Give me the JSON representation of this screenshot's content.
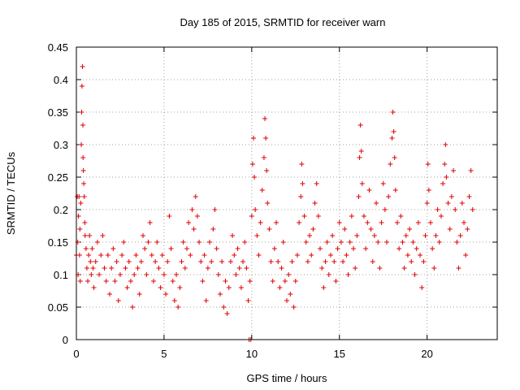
{
  "chart_data": {
    "type": "scatter",
    "title": "Day 185 of 2015, SRMTID for receiver warn",
    "xlabel": "GPS time / hours",
    "ylabel": "SRMTID / TECUs",
    "xlim": [
      0,
      24
    ],
    "ylim": [
      0,
      0.45
    ],
    "grid": true,
    "marker": "+",
    "color": "#e00000",
    "x_ticks": [
      0,
      5,
      10,
      15,
      20
    ],
    "x_tick_labels": [
      "0",
      "5",
      "10",
      "15",
      "20"
    ],
    "y_ticks": [
      0,
      0.05,
      0.1,
      0.15,
      0.2,
      0.25,
      0.3,
      0.35,
      0.4,
      0.45
    ],
    "y_tick_labels": [
      "0",
      "0.05",
      "0.1",
      "0.15",
      "0.2",
      "0.25",
      "0.3",
      "0.35",
      "0.4",
      "0.45"
    ],
    "series": [
      {
        "name": "SRMTID",
        "points": [
          [
            0.0,
            0.13
          ],
          [
            0.05,
            0.22
          ],
          [
            0.08,
            0.15
          ],
          [
            0.1,
            0.1
          ],
          [
            0.12,
            0.19
          ],
          [
            0.15,
            0.22
          ],
          [
            0.18,
            0.13
          ],
          [
            0.2,
            0.17
          ],
          [
            0.22,
            0.09
          ],
          [
            0.25,
            0.21
          ],
          [
            0.28,
            0.3
          ],
          [
            0.3,
            0.35
          ],
          [
            0.32,
            0.39
          ],
          [
            0.35,
            0.42
          ],
          [
            0.37,
            0.33
          ],
          [
            0.38,
            0.28
          ],
          [
            0.4,
            0.26
          ],
          [
            0.42,
            0.24
          ],
          [
            0.45,
            0.22
          ],
          [
            0.48,
            0.18
          ],
          [
            0.5,
            0.16
          ],
          [
            0.55,
            0.14
          ],
          [
            0.6,
            0.11
          ],
          [
            0.65,
            0.09
          ],
          [
            0.7,
            0.13
          ],
          [
            0.75,
            0.16
          ],
          [
            0.8,
            0.12
          ],
          [
            0.85,
            0.1
          ],
          [
            0.9,
            0.14
          ],
          [
            0.95,
            0.11
          ],
          [
            1.0,
            0.08
          ],
          [
            1.1,
            0.12
          ],
          [
            1.2,
            0.15
          ],
          [
            1.3,
            0.1
          ],
          [
            1.4,
            0.13
          ],
          [
            1.5,
            0.16
          ],
          [
            1.6,
            0.11
          ],
          [
            1.7,
            0.09
          ],
          [
            1.8,
            0.13
          ],
          [
            1.9,
            0.07
          ],
          [
            2.0,
            0.11
          ],
          [
            2.1,
            0.14
          ],
          [
            2.2,
            0.09
          ],
          [
            2.3,
            0.12
          ],
          [
            2.4,
            0.06
          ],
          [
            2.5,
            0.1
          ],
          [
            2.6,
            0.13
          ],
          [
            2.7,
            0.15
          ],
          [
            2.8,
            0.11
          ],
          [
            2.9,
            0.08
          ],
          [
            3.0,
            0.12
          ],
          [
            3.1,
            0.09
          ],
          [
            3.2,
            0.05
          ],
          [
            3.3,
            0.1
          ],
          [
            3.4,
            0.13
          ],
          [
            3.5,
            0.11
          ],
          [
            3.6,
            0.07
          ],
          [
            3.7,
            0.12
          ],
          [
            3.8,
            0.16
          ],
          [
            3.9,
            0.14
          ],
          [
            4.0,
            0.1
          ],
          [
            4.1,
            0.15
          ],
          [
            4.2,
            0.18
          ],
          [
            4.3,
            0.13
          ],
          [
            4.4,
            0.09
          ],
          [
            4.5,
            0.12
          ],
          [
            4.6,
            0.15
          ],
          [
            4.7,
            0.11
          ],
          [
            4.8,
            0.08
          ],
          [
            4.9,
            0.13
          ],
          [
            5.0,
            0.1
          ],
          [
            5.1,
            0.07
          ],
          [
            5.2,
            0.12
          ],
          [
            5.3,
            0.19
          ],
          [
            5.4,
            0.14
          ],
          [
            5.5,
            0.09
          ],
          [
            5.6,
            0.06
          ],
          [
            5.7,
            0.1
          ],
          [
            5.8,
            0.05
          ],
          [
            5.9,
            0.08
          ],
          [
            6.0,
            0.12
          ],
          [
            6.1,
            0.15
          ],
          [
            6.2,
            0.11
          ],
          [
            6.3,
            0.14
          ],
          [
            6.4,
            0.18
          ],
          [
            6.5,
            0.13
          ],
          [
            6.6,
            0.2
          ],
          [
            6.7,
            0.17
          ],
          [
            6.8,
            0.22
          ],
          [
            6.9,
            0.19
          ],
          [
            7.0,
            0.15
          ],
          [
            7.1,
            0.12
          ],
          [
            7.2,
            0.09
          ],
          [
            7.3,
            0.13
          ],
          [
            7.4,
            0.06
          ],
          [
            7.5,
            0.11
          ],
          [
            7.6,
            0.15
          ],
          [
            7.7,
            0.12
          ],
          [
            7.8,
            0.17
          ],
          [
            7.9,
            0.2
          ],
          [
            8.0,
            0.14
          ],
          [
            8.1,
            0.1
          ],
          [
            8.2,
            0.07
          ],
          [
            8.3,
            0.12
          ],
          [
            8.4,
            0.05
          ],
          [
            8.5,
            0.09
          ],
          [
            8.6,
            0.04
          ],
          [
            8.7,
            0.08
          ],
          [
            8.8,
            0.12
          ],
          [
            8.9,
            0.16
          ],
          [
            9.0,
            0.13
          ],
          [
            9.1,
            0.1
          ],
          [
            9.2,
            0.14
          ],
          [
            9.3,
            0.11
          ],
          [
            9.4,
            0.08
          ],
          [
            9.5,
            0.12
          ],
          [
            9.6,
            0.15
          ],
          [
            9.7,
            0.11
          ],
          [
            9.8,
            0.06
          ],
          [
            9.9,
            0.09
          ],
          [
            9.85,
            0.0
          ],
          [
            9.95,
            0.0
          ],
          [
            10.0,
            0.19
          ],
          [
            10.05,
            0.27
          ],
          [
            10.1,
            0.31
          ],
          [
            10.15,
            0.25
          ],
          [
            10.2,
            0.2
          ],
          [
            10.3,
            0.16
          ],
          [
            10.4,
            0.13
          ],
          [
            10.5,
            0.18
          ],
          [
            10.6,
            0.23
          ],
          [
            10.7,
            0.28
          ],
          [
            10.75,
            0.34
          ],
          [
            10.8,
            0.31
          ],
          [
            10.85,
            0.26
          ],
          [
            10.9,
            0.21
          ],
          [
            11.0,
            0.17
          ],
          [
            11.1,
            0.12
          ],
          [
            11.2,
            0.09
          ],
          [
            11.3,
            0.14
          ],
          [
            11.4,
            0.18
          ],
          [
            11.5,
            0.12
          ],
          [
            11.6,
            0.08
          ],
          [
            11.7,
            0.11
          ],
          [
            11.8,
            0.15
          ],
          [
            11.9,
            0.09
          ],
          [
            12.0,
            0.06
          ],
          [
            12.1,
            0.1
          ],
          [
            12.2,
            0.07
          ],
          [
            12.3,
            0.12
          ],
          [
            12.4,
            0.05
          ],
          [
            12.5,
            0.09
          ],
          [
            12.6,
            0.13
          ],
          [
            12.7,
            0.18
          ],
          [
            12.8,
            0.22
          ],
          [
            12.85,
            0.27
          ],
          [
            12.9,
            0.24
          ],
          [
            13.0,
            0.19
          ],
          [
            13.1,
            0.15
          ],
          [
            13.2,
            0.12
          ],
          [
            13.3,
            0.16
          ],
          [
            13.4,
            0.13
          ],
          [
            13.5,
            0.17
          ],
          [
            13.6,
            0.21
          ],
          [
            13.7,
            0.24
          ],
          [
            13.8,
            0.19
          ],
          [
            13.9,
            0.14
          ],
          [
            14.0,
            0.11
          ],
          [
            14.1,
            0.08
          ],
          [
            14.2,
            0.12
          ],
          [
            14.3,
            0.15
          ],
          [
            14.4,
            0.1
          ],
          [
            14.5,
            0.13
          ],
          [
            14.6,
            0.16
          ],
          [
            14.7,
            0.12
          ],
          [
            14.8,
            0.09
          ],
          [
            14.9,
            0.14
          ],
          [
            15.0,
            0.18
          ],
          [
            15.1,
            0.15
          ],
          [
            15.2,
            0.12
          ],
          [
            15.3,
            0.17
          ],
          [
            15.4,
            0.13
          ],
          [
            15.5,
            0.1
          ],
          [
            15.6,
            0.15
          ],
          [
            15.7,
            0.19
          ],
          [
            15.8,
            0.14
          ],
          [
            15.9,
            0.11
          ],
          [
            16.0,
            0.16
          ],
          [
            16.1,
            0.22
          ],
          [
            16.15,
            0.28
          ],
          [
            16.2,
            0.33
          ],
          [
            16.25,
            0.29
          ],
          [
            16.3,
            0.24
          ],
          [
            16.4,
            0.19
          ],
          [
            16.5,
            0.14
          ],
          [
            16.6,
            0.18
          ],
          [
            16.7,
            0.23
          ],
          [
            16.8,
            0.17
          ],
          [
            16.9,
            0.12
          ],
          [
            17.0,
            0.16
          ],
          [
            17.1,
            0.21
          ],
          [
            17.2,
            0.15
          ],
          [
            17.3,
            0.11
          ],
          [
            17.4,
            0.18
          ],
          [
            17.5,
            0.24
          ],
          [
            17.6,
            0.2
          ],
          [
            17.7,
            0.15
          ],
          [
            17.8,
            0.22
          ],
          [
            17.9,
            0.27
          ],
          [
            18.0,
            0.31
          ],
          [
            18.05,
            0.35
          ],
          [
            18.1,
            0.32
          ],
          [
            18.15,
            0.28
          ],
          [
            18.2,
            0.23
          ],
          [
            18.3,
            0.18
          ],
          [
            18.4,
            0.14
          ],
          [
            18.5,
            0.19
          ],
          [
            18.6,
            0.15
          ],
          [
            18.7,
            0.11
          ],
          [
            18.8,
            0.16
          ],
          [
            18.9,
            0.13
          ],
          [
            19.0,
            0.17
          ],
          [
            19.1,
            0.12
          ],
          [
            19.2,
            0.15
          ],
          [
            19.3,
            0.1
          ],
          [
            19.4,
            0.14
          ],
          [
            19.5,
            0.18
          ],
          [
            19.6,
            0.13
          ],
          [
            19.7,
            0.08
          ],
          [
            19.8,
            0.12
          ],
          [
            19.9,
            0.16
          ],
          [
            20.0,
            0.21
          ],
          [
            20.05,
            0.27
          ],
          [
            20.1,
            0.23
          ],
          [
            20.2,
            0.18
          ],
          [
            20.3,
            0.14
          ],
          [
            20.4,
            0.11
          ],
          [
            20.5,
            0.16
          ],
          [
            20.6,
            0.2
          ],
          [
            20.7,
            0.15
          ],
          [
            20.8,
            0.19
          ],
          [
            20.9,
            0.24
          ],
          [
            21.0,
            0.27
          ],
          [
            21.05,
            0.3
          ],
          [
            21.1,
            0.25
          ],
          [
            21.2,
            0.21
          ],
          [
            21.3,
            0.17
          ],
          [
            21.4,
            0.22
          ],
          [
            21.5,
            0.26
          ],
          [
            21.6,
            0.2
          ],
          [
            21.7,
            0.15
          ],
          [
            21.8,
            0.11
          ],
          [
            21.9,
            0.16
          ],
          [
            22.0,
            0.21
          ],
          [
            22.1,
            0.18
          ],
          [
            22.2,
            0.13
          ],
          [
            22.3,
            0.17
          ],
          [
            22.4,
            0.22
          ],
          [
            22.5,
            0.26
          ],
          [
            22.6,
            0.2
          ]
        ]
      }
    ]
  }
}
